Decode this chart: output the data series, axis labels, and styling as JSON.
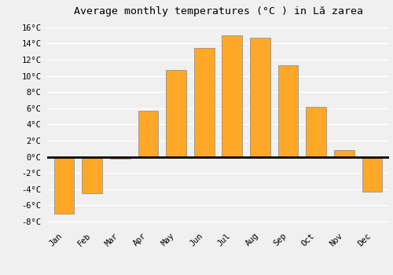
{
  "months": [
    "Jan",
    "Feb",
    "Mar",
    "Apr",
    "May",
    "Jun",
    "Jul",
    "Aug",
    "Sep",
    "Oct",
    "Nov",
    "Dec"
  ],
  "values": [
    -7.0,
    -4.5,
    -0.2,
    5.7,
    10.7,
    13.5,
    15.0,
    14.7,
    11.3,
    6.2,
    0.8,
    -4.3
  ],
  "bar_color": "#FFA726",
  "bar_edge_color": "#888888",
  "title": "Average monthly temperatures (°C ) in Lă zarea",
  "title_fontsize": 9.5,
  "ylabel_ticks": [
    "-8°C",
    "-6°C",
    "-4°C",
    "-2°C",
    "0°C",
    "2°C",
    "4°C",
    "6°C",
    "8°C",
    "10°C",
    "12°C",
    "14°C",
    "16°C"
  ],
  "ytick_values": [
    -8,
    -6,
    -4,
    -2,
    0,
    2,
    4,
    6,
    8,
    10,
    12,
    14,
    16
  ],
  "ylim": [
    -8.5,
    17.0
  ],
  "background_color": "#f0f0f0",
  "grid_color": "#ffffff",
  "zero_line_color": "#000000",
  "font_family": "monospace",
  "tick_fontsize": 7.5,
  "bar_width": 0.72
}
